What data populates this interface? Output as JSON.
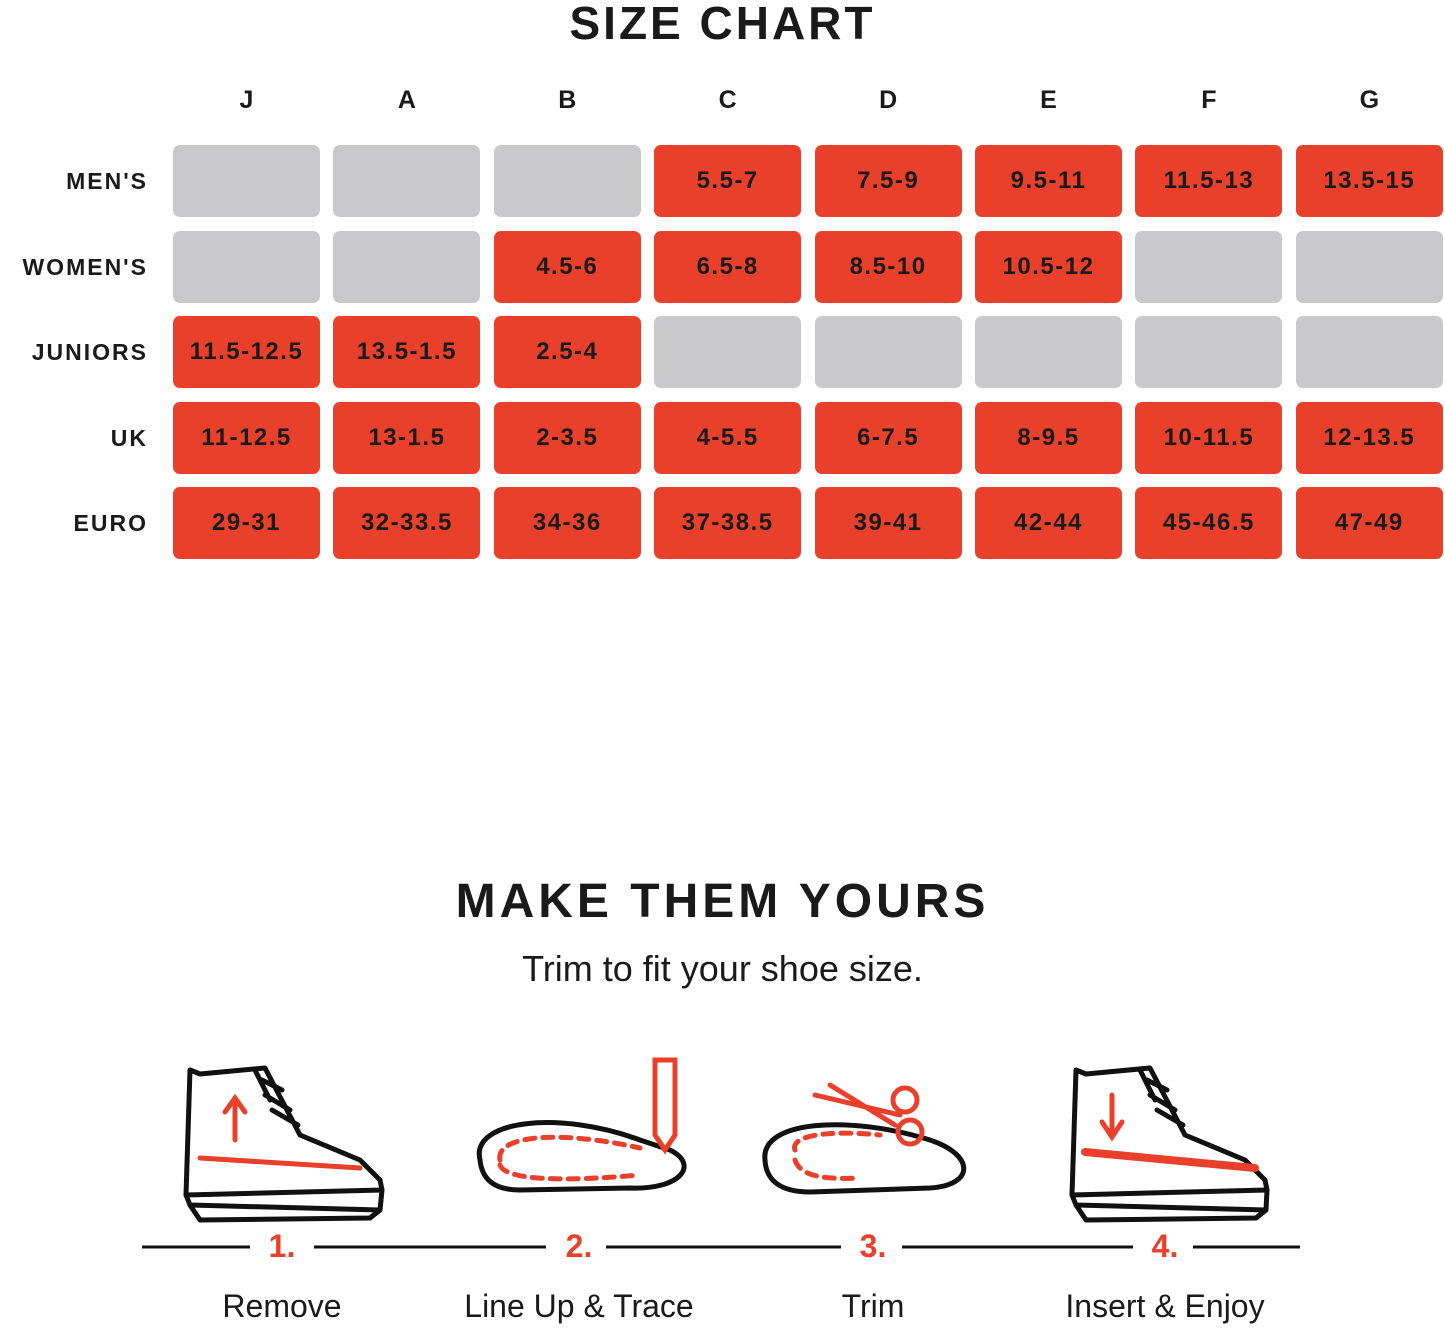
{
  "header": {
    "title": "SIZE CHART"
  },
  "table": {
    "columns": [
      "J",
      "A",
      "B",
      "C",
      "D",
      "E",
      "F",
      "G"
    ],
    "rows": [
      {
        "label": "MEN'S",
        "cells": [
          null,
          null,
          null,
          "5.5-7",
          "7.5-9",
          "9.5-11",
          "11.5-13",
          "13.5-15"
        ]
      },
      {
        "label": "WOMEN'S",
        "cells": [
          null,
          null,
          "4.5-6",
          "6.5-8",
          "8.5-10",
          "10.5-12",
          null,
          null
        ]
      },
      {
        "label": "JUNIORS",
        "cells": [
          "11.5-12.5",
          "13.5-1.5",
          "2.5-4",
          null,
          null,
          null,
          null,
          null
        ]
      },
      {
        "label": "UK",
        "cells": [
          "11-12.5",
          "13-1.5",
          "2-3.5",
          "4-5.5",
          "6-7.5",
          "8-9.5",
          "10-11.5",
          "12-13.5"
        ]
      },
      {
        "label": "EURO",
        "cells": [
          "29-31",
          "32-33.5",
          "34-36",
          "37-38.5",
          "39-41",
          "42-44",
          "45-46.5",
          "47-49"
        ]
      }
    ]
  },
  "section": {
    "title": "MAKE THEM YOURS",
    "subtitle": "Trim to fit your shoe size."
  },
  "steps": [
    {
      "number": "1.",
      "label": "Remove"
    },
    {
      "number": "2.",
      "label": "Line Up & Trace"
    },
    {
      "number": "3.",
      "label": "Trim"
    },
    {
      "number": "4.",
      "label": "Insert & Enjoy"
    }
  ]
}
